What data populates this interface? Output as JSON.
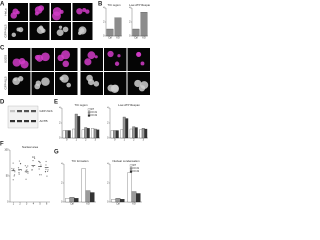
{
  "panels": [
    "A",
    "B",
    "C",
    "D",
    "E",
    "F",
    "G"
  ],
  "panel_a": {
    "cell_line": "HeLa",
    "marker": "GFP-NLS"
  },
  "panel_c": {
    "cell_line": "U2OS",
    "marker": "GFP-NLS"
  },
  "panel_d": {
    "bands": [
      "GFP-NLS",
      "ACTB"
    ]
  },
  "charts": [
    {
      "type": "bar",
      "title": "TIC region",
      "categories": [
        "Ctrl",
        "KO"
      ],
      "series": [
        {
          "name": "GFP-NLS",
          "color": "#8c8c8c",
          "values": [
            1,
            2.6
          ]
        }
      ],
      "ylim": [
        0,
        4
      ],
      "yticks": [
        0,
        2,
        4
      ]
    },
    {
      "type": "bar",
      "title": "Low-ATP lifespan",
      "categories": [
        "Ctrl",
        "KO"
      ],
      "series": [
        {
          "name": "GFP-NLS",
          "color": "#8c8c8c",
          "values": [
            1,
            3.4
          ]
        }
      ],
      "ylim": [
        0,
        4
      ],
      "yticks": [
        0,
        2,
        4
      ]
    },
    {
      "type": "bar",
      "title": "TIC region",
      "categories": [
        "0",
        "1",
        "2",
        "3"
      ],
      "series": [
        {
          "name": "WT",
          "color": "#ffffff",
          "values": [
            1,
            1.2,
            1.1,
            1.3
          ]
        },
        {
          "name": "KO #1",
          "color": "#9a9a9a",
          "values": [
            1,
            3.2,
            1.4,
            1.2
          ]
        },
        {
          "name": "KO #2",
          "color": "#333333",
          "values": [
            1,
            2.9,
            1.3,
            1.1
          ]
        }
      ],
      "ylim": [
        0,
        4
      ],
      "yticks": [
        0,
        2,
        4
      ],
      "legend": true
    },
    {
      "type": "bar",
      "title": "Low-ATP lifespan",
      "categories": [
        "0",
        "1",
        "2",
        "3"
      ],
      "series": [
        {
          "name": "WT",
          "color": "#ffffff",
          "values": [
            1,
            1.1,
            1.2,
            1.1
          ]
        },
        {
          "name": "KO #1",
          "color": "#9a9a9a",
          "values": [
            1,
            2.8,
            1.5,
            1.3
          ]
        },
        {
          "name": "KO #2",
          "color": "#333333",
          "values": [
            1,
            2.6,
            1.4,
            1.2
          ]
        }
      ],
      "ylim": [
        0,
        4
      ],
      "yticks": [
        0,
        2,
        4
      ]
    },
    {
      "type": "dot",
      "title": "Nuclear area",
      "categories": [
        "1",
        "2",
        "3",
        "4",
        "5",
        "6"
      ],
      "series": [
        {
          "name": "Cells",
          "color": "#555555",
          "values": [
            60,
            62,
            58,
            70,
            68,
            66
          ]
        }
      ],
      "ylim": [
        0,
        100
      ],
      "yticks": [
        0,
        50,
        100
      ]
    },
    {
      "type": "bar",
      "title": "TIC formation",
      "categories": [
        "Ctrl",
        "KO"
      ],
      "series": [
        {
          "name": "WT",
          "color": "#ffffff",
          "values": [
            0.4,
            3.5
          ]
        },
        {
          "name": "KO #1",
          "color": "#9a9a9a",
          "values": [
            0.5,
            1.2
          ]
        },
        {
          "name": "KO #2",
          "color": "#333333",
          "values": [
            0.4,
            1.0
          ]
        }
      ],
      "ylim": [
        0,
        4
      ],
      "yticks": [
        0,
        2,
        4
      ]
    },
    {
      "type": "bar",
      "title": "Nuclear condensation",
      "categories": [
        "Ctrl",
        "KO"
      ],
      "series": [
        {
          "name": "WT",
          "color": "#ffffff",
          "values": [
            0.3,
            3.1
          ]
        },
        {
          "name": "KO #1",
          "color": "#9a9a9a",
          "values": [
            0.4,
            1.1
          ]
        },
        {
          "name": "KO #2",
          "color": "#333333",
          "values": [
            0.3,
            0.9
          ]
        }
      ],
      "ylim": [
        0,
        4
      ],
      "yticks": [
        0,
        2,
        4
      ],
      "legend": true
    }
  ]
}
